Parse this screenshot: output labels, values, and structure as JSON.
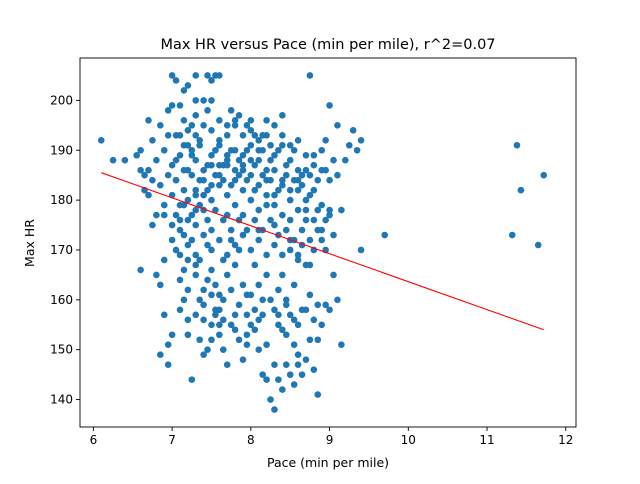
{
  "chart_data": {
    "type": "scatter",
    "title": "Max HR versus Pace (min per mile), r^2=0.07",
    "xlabel": "Pace (min per mile)",
    "ylabel": "Max HR",
    "xlim": [
      5.83,
      12.13
    ],
    "ylim": [
      134.5,
      208.5
    ],
    "xticks": [
      "6",
      "7",
      "8",
      "9",
      "10",
      "11",
      "12"
    ],
    "yticks": [
      "140",
      "150",
      "160",
      "170",
      "180",
      "190",
      "200"
    ],
    "xtick_values": [
      6,
      7,
      8,
      9,
      10,
      11,
      12
    ],
    "ytick_values": [
      140,
      150,
      160,
      170,
      180,
      190,
      200
    ],
    "grid": false,
    "point_color": "#1f77b4",
    "fit_color": "#ff0000",
    "fit_line": {
      "x": [
        6.1,
        11.72
      ],
      "y": [
        185.5,
        154.0
      ]
    },
    "points": [
      [
        6.1,
        192
      ],
      [
        6.25,
        188
      ],
      [
        6.4,
        188
      ],
      [
        6.6,
        166
      ],
      [
        6.65,
        182
      ],
      [
        6.7,
        196
      ],
      [
        6.75,
        175
      ],
      [
        6.8,
        165
      ],
      [
        6.85,
        163
      ],
      [
        6.85,
        149
      ],
      [
        6.9,
        168
      ],
      [
        6.95,
        151
      ],
      [
        6.95,
        147
      ],
      [
        7.0,
        205
      ],
      [
        7.05,
        204
      ],
      [
        7.1,
        199
      ],
      [
        7.15,
        202
      ],
      [
        7.0,
        199
      ],
      [
        7.2,
        203
      ],
      [
        7.3,
        205
      ],
      [
        7.45,
        205
      ],
      [
        7.5,
        204
      ],
      [
        7.55,
        205
      ],
      [
        7.6,
        205
      ],
      [
        7.3,
        200
      ],
      [
        7.4,
        200
      ],
      [
        7.5,
        200
      ],
      [
        7.15,
        196
      ],
      [
        7.25,
        195
      ],
      [
        7.05,
        193
      ],
      [
        6.95,
        198
      ],
      [
        7.2,
        153
      ],
      [
        7.25,
        144
      ],
      [
        7.1,
        158
      ],
      [
        7.15,
        160
      ],
      [
        7.05,
        170
      ],
      [
        7.1,
        174
      ],
      [
        7.15,
        166
      ],
      [
        7.2,
        162
      ],
      [
        7.0,
        153
      ],
      [
        7.3,
        157
      ],
      [
        7.35,
        152
      ],
      [
        7.4,
        149
      ],
      [
        7.45,
        150
      ],
      [
        7.5,
        155
      ],
      [
        7.55,
        158
      ],
      [
        7.6,
        153
      ],
      [
        7.65,
        156
      ],
      [
        7.7,
        147
      ],
      [
        7.75,
        155
      ],
      [
        7.8,
        154
      ],
      [
        7.85,
        152
      ],
      [
        7.9,
        148
      ],
      [
        7.95,
        151
      ],
      [
        8.0,
        155
      ],
      [
        8.05,
        154
      ],
      [
        8.1,
        150
      ],
      [
        8.15,
        145
      ],
      [
        8.2,
        144
      ],
      [
        8.25,
        140
      ],
      [
        8.3,
        138
      ],
      [
        8.35,
        144
      ],
      [
        8.4,
        142
      ],
      [
        8.45,
        147
      ],
      [
        8.5,
        145
      ],
      [
        8.55,
        143
      ],
      [
        8.6,
        149
      ],
      [
        8.65,
        145
      ],
      [
        8.7,
        148
      ],
      [
        8.75,
        152
      ],
      [
        8.8,
        146
      ],
      [
        8.85,
        141
      ],
      [
        8.9,
        155
      ],
      [
        8.95,
        159
      ],
      [
        9.0,
        158
      ],
      [
        9.05,
        165
      ],
      [
        9.1,
        160
      ],
      [
        9.15,
        151
      ],
      [
        8.4,
        154
      ],
      [
        8.5,
        157
      ],
      [
        8.6,
        155
      ],
      [
        8.7,
        158
      ],
      [
        8.8,
        156
      ],
      [
        8.85,
        152
      ],
      [
        8.3,
        158
      ],
      [
        8.35,
        162
      ],
      [
        8.4,
        165
      ],
      [
        8.45,
        160
      ],
      [
        8.55,
        163
      ],
      [
        8.6,
        168
      ],
      [
        8.65,
        171
      ],
      [
        8.75,
        167
      ],
      [
        8.8,
        170
      ],
      [
        8.9,
        172
      ],
      [
        8.2,
        165
      ],
      [
        8.15,
        160
      ],
      [
        8.1,
        163
      ],
      [
        8.05,
        167
      ],
      [
        8.0,
        161
      ],
      [
        7.95,
        157
      ],
      [
        7.9,
        163
      ],
      [
        7.85,
        170
      ],
      [
        7.8,
        167
      ],
      [
        7.75,
        172
      ],
      [
        7.7,
        165
      ],
      [
        7.65,
        168
      ],
      [
        7.6,
        161
      ],
      [
        7.55,
        163
      ],
      [
        7.5,
        166
      ],
      [
        7.45,
        171
      ],
      [
        7.4,
        162
      ],
      [
        7.35,
        168
      ],
      [
        7.3,
        175
      ],
      [
        7.25,
        172
      ],
      [
        7.2,
        168
      ],
      [
        7.15,
        173
      ],
      [
        7.3,
        165
      ],
      [
        7.4,
        159
      ],
      [
        7.5,
        161
      ],
      [
        7.6,
        158
      ],
      [
        7.1,
        176
      ],
      [
        7.2,
        180
      ],
      [
        7.3,
        182
      ],
      [
        7.4,
        178
      ],
      [
        7.5,
        180
      ],
      [
        7.6,
        183
      ],
      [
        7.7,
        181
      ],
      [
        7.8,
        179
      ],
      [
        7.9,
        182
      ],
      [
        8.0,
        180
      ],
      [
        8.1,
        178
      ],
      [
        8.2,
        181
      ],
      [
        8.3,
        179
      ],
      [
        8.4,
        177
      ],
      [
        8.5,
        176
      ],
      [
        8.6,
        178
      ],
      [
        8.7,
        180
      ],
      [
        8.8,
        182
      ],
      [
        8.9,
        179
      ],
      [
        9.0,
        177
      ],
      [
        6.7,
        186
      ],
      [
        6.8,
        188
      ],
      [
        6.9,
        190
      ],
      [
        7.0,
        187
      ],
      [
        7.1,
        189
      ],
      [
        7.2,
        191
      ],
      [
        7.3,
        188
      ],
      [
        7.4,
        186
      ],
      [
        7.5,
        189
      ],
      [
        7.6,
        191
      ],
      [
        7.7,
        188
      ],
      [
        7.8,
        186
      ],
      [
        7.9,
        189
      ],
      [
        8.0,
        191
      ],
      [
        8.1,
        188
      ],
      [
        8.2,
        186
      ],
      [
        8.3,
        189
      ],
      [
        8.4,
        191
      ],
      [
        8.5,
        188
      ],
      [
        8.6,
        186
      ],
      [
        8.7,
        189
      ],
      [
        8.8,
        187
      ],
      [
        8.9,
        190
      ],
      [
        6.75,
        184
      ],
      [
        6.85,
        183
      ],
      [
        6.95,
        185
      ],
      [
        7.05,
        184
      ],
      [
        7.15,
        182
      ],
      [
        7.25,
        185
      ],
      [
        7.35,
        184
      ],
      [
        7.45,
        182
      ],
      [
        7.55,
        185
      ],
      [
        7.65,
        184
      ],
      [
        7.75,
        183
      ],
      [
        7.85,
        185
      ],
      [
        7.95,
        184
      ],
      [
        8.05,
        182
      ],
      [
        8.15,
        185
      ],
      [
        8.25,
        184
      ],
      [
        8.35,
        182
      ],
      [
        8.45,
        185
      ],
      [
        8.55,
        184
      ],
      [
        8.65,
        183
      ],
      [
        8.75,
        185
      ],
      [
        8.85,
        184
      ],
      [
        8.95,
        186
      ],
      [
        9.05,
        188
      ],
      [
        9.1,
        185
      ],
      [
        9.2,
        188
      ],
      [
        9.25,
        191
      ],
      [
        9.3,
        194
      ],
      [
        9.35,
        190
      ],
      [
        9.4,
        192
      ],
      [
        9.1,
        195
      ],
      [
        9.0,
        199
      ],
      [
        8.95,
        192
      ],
      [
        9.15,
        178
      ],
      [
        9.0,
        178
      ],
      [
        9.05,
        173
      ],
      [
        8.95,
        170
      ],
      [
        9.4,
        170
      ],
      [
        9.7,
        173
      ],
      [
        11.32,
        173
      ],
      [
        11.38,
        191
      ],
      [
        11.43,
        182
      ],
      [
        11.65,
        171
      ],
      [
        11.72,
        185
      ],
      [
        8.75,
        205
      ],
      [
        7.45,
        198
      ],
      [
        7.3,
        197
      ],
      [
        6.6,
        190
      ],
      [
        6.65,
        185
      ],
      [
        6.7,
        181
      ],
      [
        6.8,
        177
      ],
      [
        6.9,
        179
      ],
      [
        7.0,
        181
      ],
      [
        7.05,
        177
      ],
      [
        7.15,
        179
      ],
      [
        7.25,
        177
      ],
      [
        7.35,
        179
      ],
      [
        7.45,
        176
      ],
      [
        7.55,
        178
      ],
      [
        7.65,
        176
      ],
      [
        7.75,
        174
      ],
      [
        7.85,
        176
      ],
      [
        7.95,
        174
      ],
      [
        8.05,
        176
      ],
      [
        8.15,
        174
      ],
      [
        8.25,
        176
      ],
      [
        8.35,
        173
      ],
      [
        8.45,
        174
      ],
      [
        8.55,
        172
      ],
      [
        8.65,
        174
      ],
      [
        8.75,
        172
      ],
      [
        8.85,
        174
      ],
      [
        8.95,
        176
      ],
      [
        7.1,
        193
      ],
      [
        7.2,
        194
      ],
      [
        7.3,
        193
      ],
      [
        7.4,
        195
      ],
      [
        7.5,
        194
      ],
      [
        7.6,
        192
      ],
      [
        7.7,
        193
      ],
      [
        7.8,
        195
      ],
      [
        7.9,
        193
      ],
      [
        8.0,
        194
      ],
      [
        8.1,
        192
      ],
      [
        8.2,
        193
      ],
      [
        8.3,
        195
      ],
      [
        8.4,
        193
      ],
      [
        8.5,
        191
      ],
      [
        8.6,
        192
      ],
      [
        6.55,
        189
      ],
      [
        6.6,
        186
      ],
      [
        6.75,
        192
      ],
      [
        6.85,
        195
      ],
      [
        6.95,
        193
      ],
      [
        7.0,
        172
      ],
      [
        7.1,
        169
      ],
      [
        7.2,
        171
      ],
      [
        7.3,
        169
      ],
      [
        7.4,
        173
      ],
      [
        7.5,
        170
      ],
      [
        7.6,
        172
      ],
      [
        7.7,
        169
      ],
      [
        7.8,
        171
      ],
      [
        7.9,
        173
      ],
      [
        8.0,
        170
      ],
      [
        8.1,
        172
      ],
      [
        8.2,
        169
      ],
      [
        8.3,
        171
      ],
      [
        8.4,
        169
      ],
      [
        8.5,
        172
      ],
      [
        8.6,
        169
      ],
      [
        8.7,
        167
      ],
      [
        7.35,
        160
      ],
      [
        7.45,
        164
      ],
      [
        7.55,
        157
      ],
      [
        7.65,
        160
      ],
      [
        7.75,
        162
      ],
      [
        7.85,
        159
      ],
      [
        7.95,
        161
      ],
      [
        8.05,
        158
      ],
      [
        8.15,
        157
      ],
      [
        8.25,
        160
      ],
      [
        8.35,
        157
      ],
      [
        8.45,
        159
      ],
      [
        8.55,
        156
      ],
      [
        8.65,
        158
      ],
      [
        8.75,
        161
      ],
      [
        8.85,
        159
      ],
      [
        7.2,
        186
      ],
      [
        7.3,
        181
      ],
      [
        7.4,
        184
      ],
      [
        7.5,
        187
      ],
      [
        7.6,
        185
      ],
      [
        7.7,
        187
      ],
      [
        7.8,
        190
      ],
      [
        7.9,
        187
      ],
      [
        8.0,
        185
      ],
      [
        8.1,
        190
      ],
      [
        8.2,
        184
      ],
      [
        8.3,
        186
      ],
      [
        8.4,
        184
      ],
      [
        8.5,
        182
      ],
      [
        8.6,
        184
      ],
      [
        8.7,
        186
      ],
      [
        8.8,
        189
      ],
      [
        8.9,
        186
      ],
      [
        9.0,
        184
      ],
      [
        6.9,
        177
      ],
      [
        7.0,
        175
      ],
      [
        7.1,
        179
      ],
      [
        7.2,
        176
      ],
      [
        7.3,
        178
      ],
      [
        7.4,
        181
      ],
      [
        7.5,
        183
      ],
      [
        7.6,
        187
      ],
      [
        7.7,
        189
      ],
      [
        7.8,
        184
      ],
      [
        7.9,
        186
      ],
      [
        8.0,
        188
      ],
      [
        8.1,
        183
      ],
      [
        8.2,
        179
      ],
      [
        8.3,
        181
      ],
      [
        8.4,
        183
      ],
      [
        8.5,
        180
      ],
      [
        8.6,
        182
      ],
      [
        8.7,
        178
      ],
      [
        8.8,
        176
      ],
      [
        7.05,
        188
      ],
      [
        7.15,
        191
      ],
      [
        7.25,
        189
      ],
      [
        7.35,
        191
      ],
      [
        7.45,
        187
      ],
      [
        7.55,
        190
      ],
      [
        7.65,
        187
      ],
      [
        7.75,
        190
      ],
      [
        7.85,
        188
      ],
      [
        7.95,
        190
      ],
      [
        8.05,
        187
      ],
      [
        8.15,
        190
      ],
      [
        8.25,
        188
      ],
      [
        8.35,
        190
      ],
      [
        8.45,
        187
      ],
      [
        8.55,
        190
      ],
      [
        8.65,
        185
      ],
      [
        8.75,
        181
      ],
      [
        8.85,
        178
      ],
      [
        7.5,
        152
      ],
      [
        7.65,
        150
      ],
      [
        7.8,
        157
      ],
      [
        8.1,
        156
      ],
      [
        8.35,
        155
      ],
      [
        8.45,
        153
      ],
      [
        8.55,
        151
      ],
      [
        8.6,
        147
      ],
      [
        8.3,
        147
      ],
      [
        8.2,
        151
      ],
      [
        7.95,
        153
      ],
      [
        7.6,
        155
      ],
      [
        7.4,
        156
      ],
      [
        7.2,
        156
      ],
      [
        6.9,
        157
      ],
      [
        7.1,
        164
      ],
      [
        7.3,
        167
      ],
      [
        7.5,
        174
      ],
      [
        7.7,
        177
      ],
      [
        7.9,
        177
      ],
      [
        8.1,
        174
      ],
      [
        8.3,
        175
      ],
      [
        8.5,
        170
      ],
      [
        8.7,
        176
      ],
      [
        8.9,
        174
      ],
      [
        7.6,
        196
      ],
      [
        7.7,
        195
      ],
      [
        7.8,
        196
      ],
      [
        8.0,
        196
      ],
      [
        8.2,
        196
      ],
      [
        8.4,
        197
      ],
      [
        8.25,
        191
      ],
      [
        8.15,
        193
      ],
      [
        8.05,
        193
      ],
      [
        7.95,
        195
      ],
      [
        7.85,
        197
      ],
      [
        7.75,
        198
      ],
      [
        7.35,
        192
      ],
      [
        7.25,
        190
      ],
      [
        7.15,
        186
      ],
      [
        7.05,
        184
      ]
    ]
  }
}
